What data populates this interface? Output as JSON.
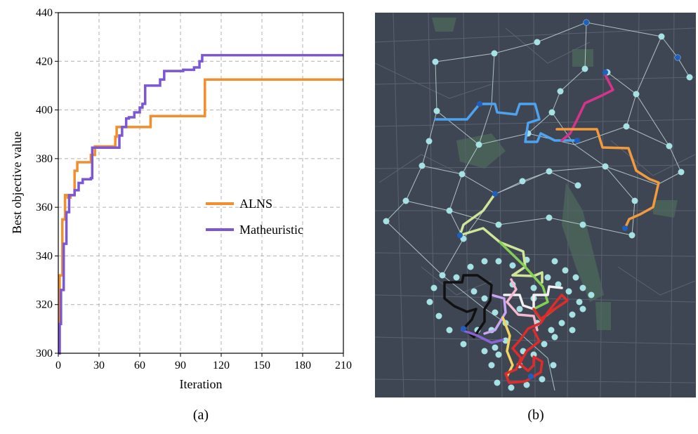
{
  "panel_a": {
    "caption": "(a)"
  },
  "panel_b": {
    "caption": "(b)"
  },
  "colors": {
    "alns": "#f28e2b",
    "matheuristic": "#7b57d6",
    "map_bg": "#3f4653",
    "map_park": "#4c6a5a",
    "node": "#a6e1e3",
    "hub": "#1f5fbf"
  },
  "chart_data": {
    "type": "line",
    "xlabel": "Iteration",
    "ylabel": "Best objective value",
    "xlim": [
      0,
      210
    ],
    "ylim": [
      300,
      440
    ],
    "xticks": [
      0,
      30,
      60,
      90,
      120,
      150,
      180,
      210
    ],
    "yticks": [
      300,
      320,
      340,
      360,
      380,
      400,
      420,
      440
    ],
    "grid": true,
    "legend_position": "center-right",
    "step": true,
    "series": [
      {
        "name": "ALNS",
        "color": "#f28e2b",
        "x": [
          0,
          1,
          3,
          5,
          7,
          9,
          12,
          14,
          20,
          24,
          27,
          42,
          43,
          56,
          68,
          108,
          210
        ],
        "y": [
          300,
          332,
          355,
          365,
          364,
          365,
          375,
          378.5,
          378.5,
          381.5,
          385,
          389,
          393,
          393,
          397.5,
          412.5,
          412.5
        ]
      },
      {
        "name": "Matheuristic",
        "color": "#7b57d6",
        "x": [
          0,
          1,
          2,
          4,
          6,
          8,
          12,
          15,
          18,
          24,
          25,
          45,
          47,
          50,
          52,
          56,
          60,
          62,
          64,
          66,
          75,
          78,
          82,
          92,
          100,
          104,
          106,
          210
        ],
        "y": [
          300,
          312,
          326,
          345,
          358,
          365,
          367,
          370,
          371.5,
          372,
          384.5,
          389.5,
          393,
          396.5,
          397,
          399,
          401,
          402.5,
          410,
          410,
          412.5,
          416,
          416,
          416.5,
          417.5,
          420,
          422.5,
          422.5
        ]
      }
    ]
  }
}
